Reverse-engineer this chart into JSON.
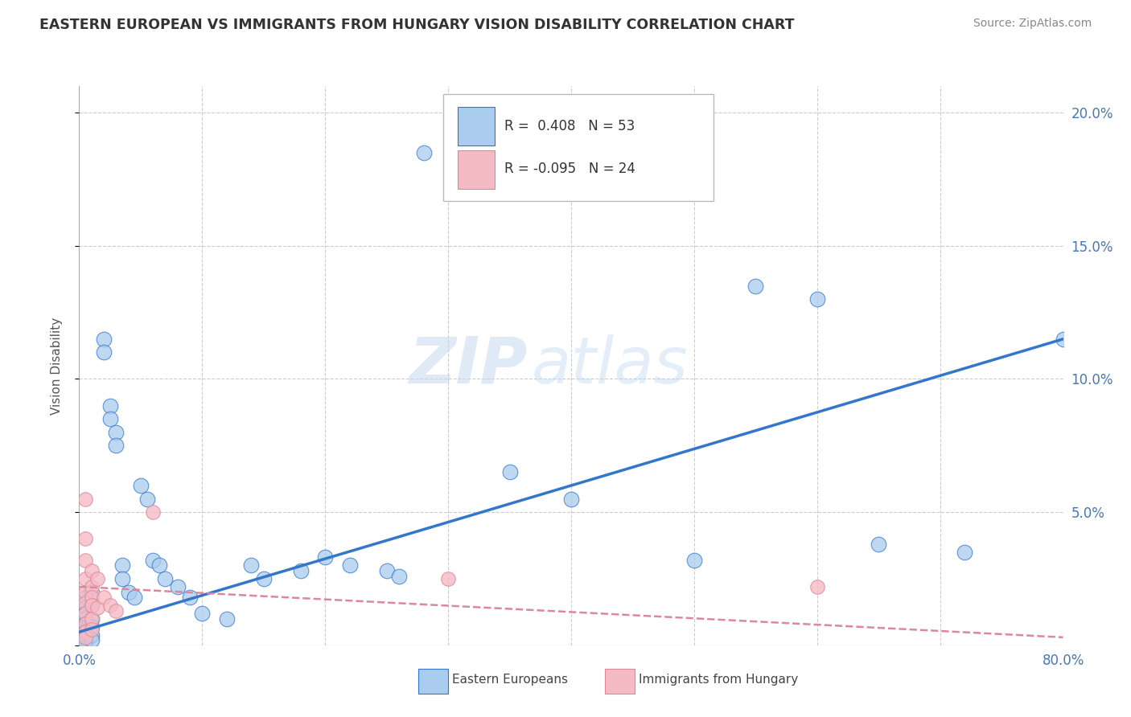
{
  "title": "EASTERN EUROPEAN VS IMMIGRANTS FROM HUNGARY VISION DISABILITY CORRELATION CHART",
  "source": "Source: ZipAtlas.com",
  "ylabel": "Vision Disability",
  "xlim": [
    0.0,
    0.8
  ],
  "ylim": [
    0.0,
    0.21
  ],
  "xticks": [
    0.0,
    0.1,
    0.2,
    0.3,
    0.4,
    0.5,
    0.6,
    0.7,
    0.8
  ],
  "yticks": [
    0.0,
    0.05,
    0.1,
    0.15,
    0.2
  ],
  "background_color": "#ffffff",
  "grid_color": "#cccccc",
  "watermark_zip": "ZIP",
  "watermark_atlas": "atlas",
  "legend1_label": "Eastern Europeans",
  "legend2_label": "Immigrants from Hungary",
  "R1": "0.408",
  "N1": "53",
  "R2": "-0.095",
  "N2": "24",
  "blue_color": "#aaccee",
  "pink_color": "#f5bbc5",
  "blue_line_color": "#3377cc",
  "pink_line_color": "#dd8899",
  "title_color": "#333333",
  "source_color": "#888888",
  "ylabel_color": "#555555",
  "tick_color": "#4477bb",
  "blue_scatter": [
    [
      0.005,
      0.018
    ],
    [
      0.005,
      0.014
    ],
    [
      0.005,
      0.012
    ],
    [
      0.005,
      0.01
    ],
    [
      0.005,
      0.008
    ],
    [
      0.005,
      0.007
    ],
    [
      0.005,
      0.006
    ],
    [
      0.005,
      0.005
    ],
    [
      0.005,
      0.004
    ],
    [
      0.005,
      0.003
    ],
    [
      0.005,
      0.002
    ],
    [
      0.005,
      0.001
    ],
    [
      0.01,
      0.02
    ],
    [
      0.01,
      0.015
    ],
    [
      0.01,
      0.01
    ],
    [
      0.01,
      0.007
    ],
    [
      0.01,
      0.004
    ],
    [
      0.01,
      0.002
    ],
    [
      0.02,
      0.115
    ],
    [
      0.02,
      0.11
    ],
    [
      0.025,
      0.09
    ],
    [
      0.025,
      0.085
    ],
    [
      0.03,
      0.08
    ],
    [
      0.03,
      0.075
    ],
    [
      0.035,
      0.03
    ],
    [
      0.035,
      0.025
    ],
    [
      0.04,
      0.02
    ],
    [
      0.045,
      0.018
    ],
    [
      0.05,
      0.06
    ],
    [
      0.055,
      0.055
    ],
    [
      0.06,
      0.032
    ],
    [
      0.065,
      0.03
    ],
    [
      0.07,
      0.025
    ],
    [
      0.08,
      0.022
    ],
    [
      0.09,
      0.018
    ],
    [
      0.1,
      0.012
    ],
    [
      0.12,
      0.01
    ],
    [
      0.14,
      0.03
    ],
    [
      0.15,
      0.025
    ],
    [
      0.18,
      0.028
    ],
    [
      0.2,
      0.033
    ],
    [
      0.22,
      0.03
    ],
    [
      0.25,
      0.028
    ],
    [
      0.26,
      0.026
    ],
    [
      0.28,
      0.185
    ],
    [
      0.35,
      0.065
    ],
    [
      0.4,
      0.055
    ],
    [
      0.5,
      0.032
    ],
    [
      0.55,
      0.135
    ],
    [
      0.6,
      0.13
    ],
    [
      0.65,
      0.038
    ],
    [
      0.72,
      0.035
    ],
    [
      0.8,
      0.115
    ]
  ],
  "pink_scatter": [
    [
      0.005,
      0.055
    ],
    [
      0.005,
      0.04
    ],
    [
      0.005,
      0.032
    ],
    [
      0.005,
      0.025
    ],
    [
      0.005,
      0.02
    ],
    [
      0.005,
      0.016
    ],
    [
      0.005,
      0.012
    ],
    [
      0.005,
      0.008
    ],
    [
      0.005,
      0.005
    ],
    [
      0.005,
      0.003
    ],
    [
      0.01,
      0.028
    ],
    [
      0.01,
      0.022
    ],
    [
      0.01,
      0.018
    ],
    [
      0.01,
      0.015
    ],
    [
      0.01,
      0.01
    ],
    [
      0.01,
      0.006
    ],
    [
      0.015,
      0.025
    ],
    [
      0.015,
      0.014
    ],
    [
      0.02,
      0.018
    ],
    [
      0.025,
      0.015
    ],
    [
      0.03,
      0.013
    ],
    [
      0.06,
      0.05
    ],
    [
      0.3,
      0.025
    ],
    [
      0.6,
      0.022
    ]
  ],
  "blue_trendline": [
    [
      0.0,
      0.005
    ],
    [
      0.8,
      0.115
    ]
  ],
  "pink_trendline": [
    [
      0.0,
      0.022
    ],
    [
      0.8,
      0.003
    ]
  ]
}
